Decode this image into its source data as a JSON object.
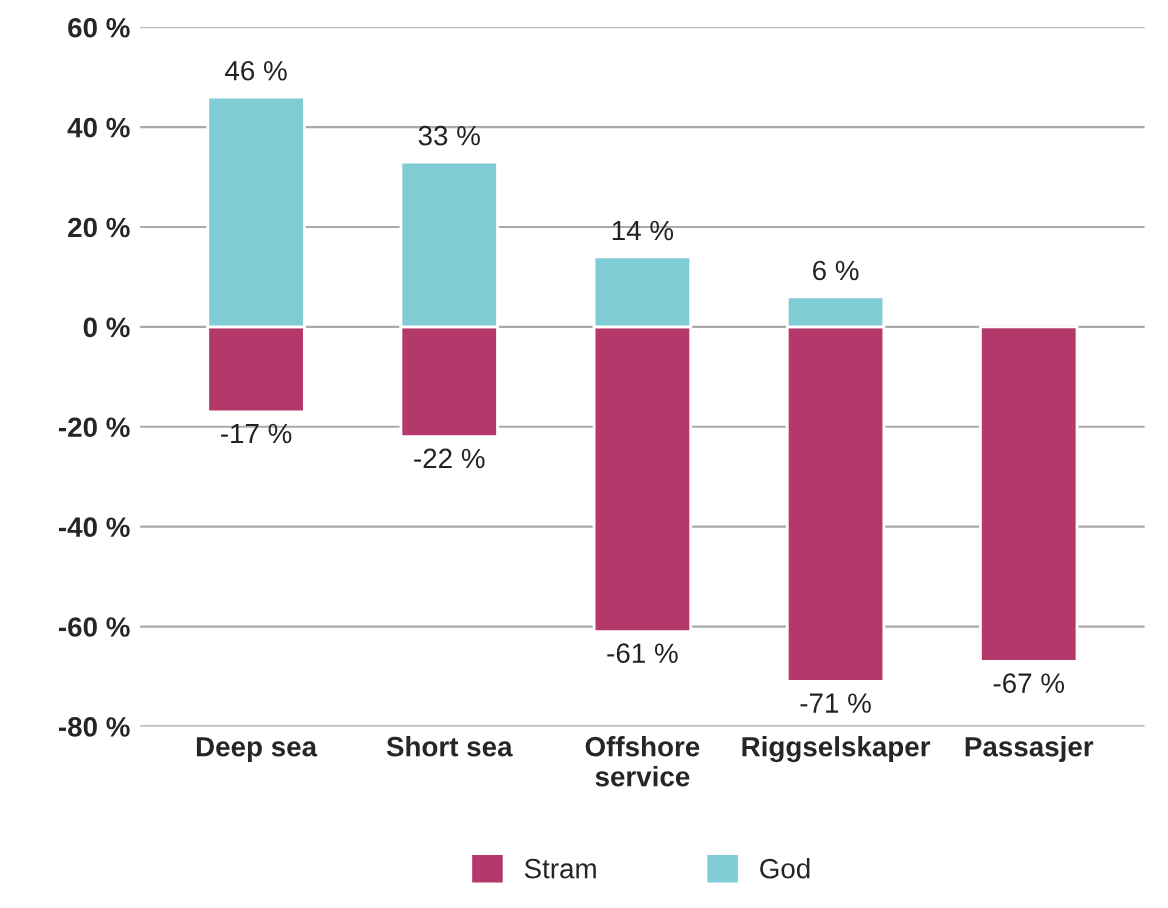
{
  "chart_data": {
    "type": "bar",
    "categories": [
      "Deep sea",
      "Short sea",
      "Offshore\nservice",
      "Riggselskaper",
      "Passasjer"
    ],
    "series": [
      {
        "name": "Stram",
        "color": "#b4386a",
        "values": [
          -17,
          -22,
          -61,
          -71,
          -67
        ],
        "value_labels": [
          "-17 %",
          "-22 %",
          "-61 %",
          "-71 %",
          "-67 %"
        ]
      },
      {
        "name": "God",
        "color": "#80ccd4",
        "values": [
          46,
          33,
          14,
          6,
          null
        ],
        "value_labels": [
          "46 %",
          "33 %",
          "14 %",
          "6 %",
          null
        ]
      }
    ],
    "ylim": [
      -80,
      60
    ],
    "stacked": true,
    "yticks": [
      {
        "value": -80,
        "label": "-80 %"
      },
      {
        "value": -60,
        "label": "-60 %"
      },
      {
        "value": -40,
        "label": "-40 %"
      },
      {
        "value": -20,
        "label": "-20 %"
      },
      {
        "value": 0,
        "label": "0 %"
      },
      {
        "value": 20,
        "label": "20 %"
      },
      {
        "value": 40,
        "label": "40 %"
      },
      {
        "value": 60,
        "label": "60 %"
      }
    ],
    "grid": "y",
    "legend": "bottom"
  }
}
